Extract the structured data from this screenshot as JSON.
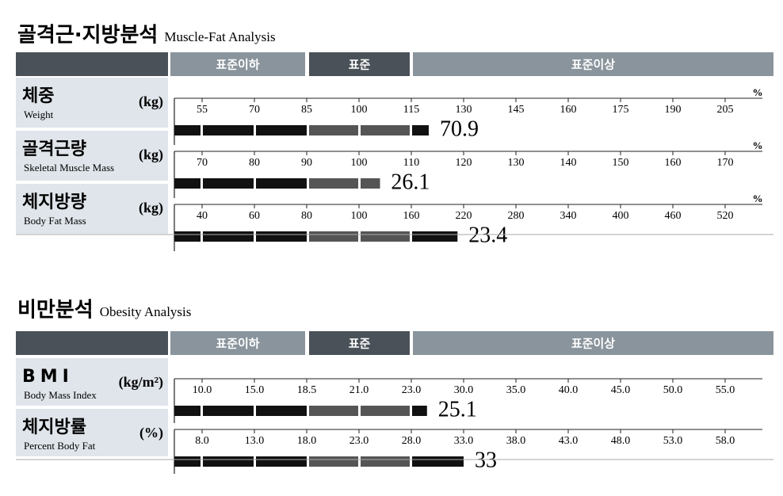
{
  "sections": [
    {
      "title": "골격근·지방분석",
      "subtitle": "Muscle-Fat Analysis",
      "header": [
        "표준이하",
        "표준",
        "표준이상"
      ],
      "rows": [
        {
          "name": "체중",
          "name_en": "Weight",
          "unit": "(kg)",
          "value": 70.9,
          "percent": 120,
          "scale_unit": "%",
          "ticks": [
            55,
            70,
            85,
            100,
            115,
            130,
            145,
            160,
            175,
            190,
            205
          ]
        },
        {
          "name": "골격근량",
          "name_en": "Skeletal Muscle Mass",
          "unit": "(kg)",
          "value": 26.1,
          "percent": 104,
          "scale_unit": "%",
          "ticks": [
            70,
            80,
            90,
            100,
            110,
            120,
            130,
            140,
            150,
            160,
            170
          ]
        },
        {
          "name": "체지방량",
          "name_en": "Body Fat Mass",
          "unit": "(kg)",
          "value": 23.4,
          "percent": 213,
          "scale_unit": "%",
          "ticks": [
            40,
            60,
            80,
            100,
            160,
            220,
            280,
            340,
            400,
            460,
            520
          ]
        }
      ]
    },
    {
      "title": "비만분석",
      "subtitle": "Obesity Analysis",
      "header": [
        "표준이하",
        "표준",
        "표준이상"
      ],
      "rows": [
        {
          "name": "BMI",
          "name_en": "Body Mass Index",
          "unit": "(kg/m²)",
          "value": 25.1,
          "ticks": [
            {
              "value": 10,
              "label": "10.0"
            },
            {
              "value": 15,
              "label": "15.0"
            },
            {
              "value": 18.5,
              "label": "18.5"
            },
            {
              "value": 21,
              "label": "21.0"
            },
            {
              "value": 23,
              "label": "23.0"
            },
            {
              "value": 30,
              "label": "30.0"
            },
            {
              "value": 35,
              "label": "35.0"
            },
            {
              "value": 40,
              "label": "40.0"
            },
            {
              "value": 45,
              "label": "45.0"
            },
            {
              "value": 50,
              "label": "50.0"
            },
            {
              "value": 55,
              "label": "55.0"
            }
          ]
        },
        {
          "name": "체지방률",
          "name_en": "Percent Body Fat",
          "unit": "(%)",
          "value": 33.0,
          "ticks": [
            {
              "value": 8,
              "label": "8.0"
            },
            {
              "value": 13,
              "label": "13.0"
            },
            {
              "value": 18,
              "label": "18.0"
            },
            {
              "value": 23,
              "label": "23.0"
            },
            {
              "value": 28,
              "label": "28.0"
            },
            {
              "value": 33,
              "label": "33.0"
            },
            {
              "value": 38,
              "label": "38.0"
            },
            {
              "value": 43,
              "label": "43.0"
            },
            {
              "value": 48,
              "label": "48.0"
            },
            {
              "value": 53,
              "label": "53.0"
            },
            {
              "value": 58,
              "label": "58.0"
            }
          ]
        }
      ]
    }
  ]
}
